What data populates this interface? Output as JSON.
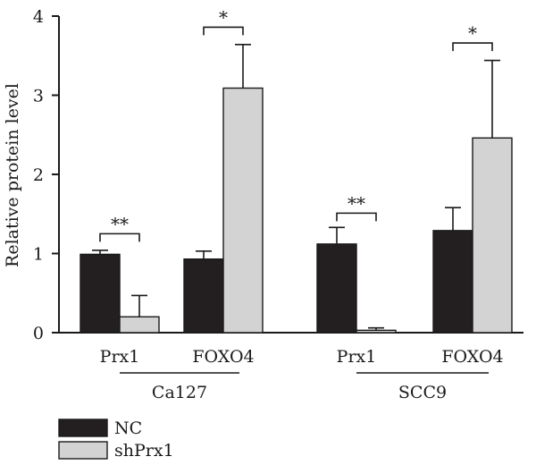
{
  "chart_data": {
    "type": "bar",
    "ylabel": "Relative protein level",
    "ylim": [
      0,
      4
    ],
    "yticks": [
      "0",
      "1",
      "2",
      "3",
      "4"
    ],
    "categories": [
      "Prx1",
      "FOXO4",
      "Prx1",
      "FOXO4"
    ],
    "groups": [
      {
        "label": "Ca127",
        "category_indices": [
          0,
          1
        ]
      },
      {
        "label": "SCC9",
        "category_indices": [
          2,
          3
        ]
      }
    ],
    "series": [
      {
        "name": "NC",
        "color": "#231f20",
        "values": [
          0.99,
          0.93,
          1.12,
          1.29
        ],
        "errors": [
          0.05,
          0.1,
          0.21,
          0.29
        ]
      },
      {
        "name": "shPrx1",
        "color": "#d3d3d3",
        "values": [
          0.2,
          3.09,
          0.03,
          2.46
        ],
        "errors": [
          0.27,
          0.55,
          0.03,
          0.98
        ]
      }
    ],
    "significance": [
      {
        "category_index": 0,
        "label": "**",
        "level": 1.25
      },
      {
        "category_index": 1,
        "label": "*",
        "level": 3.86
      },
      {
        "category_index": 2,
        "label": "**",
        "level": 1.51
      },
      {
        "category_index": 3,
        "label": "*",
        "level": 3.66
      }
    ],
    "legend_position": "bottom-left"
  }
}
